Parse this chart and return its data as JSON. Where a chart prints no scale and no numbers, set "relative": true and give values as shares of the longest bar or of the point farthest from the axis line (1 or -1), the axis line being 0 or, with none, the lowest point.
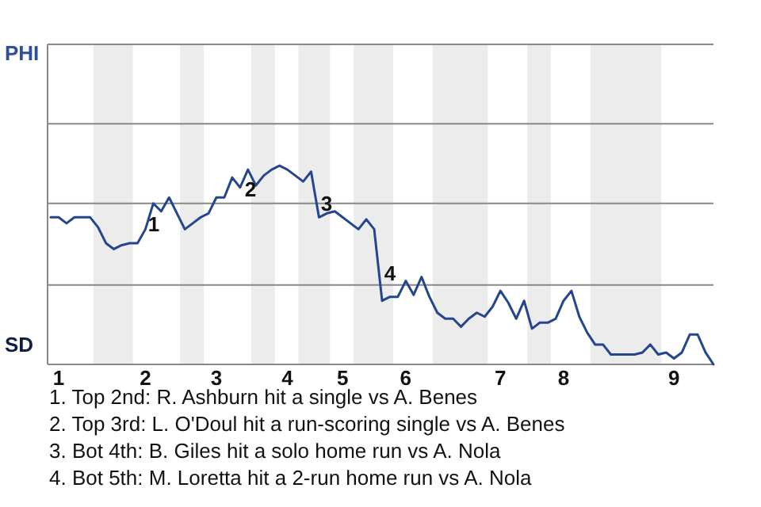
{
  "chart_data": {
    "type": "line",
    "relative": true,
    "categories": [
      null,
      "1",
      null,
      null,
      null,
      null,
      null,
      null,
      null,
      null,
      null,
      null,
      "2",
      null,
      null,
      null,
      null,
      null,
      null,
      null,
      null,
      "3",
      null,
      null,
      null,
      null,
      null,
      null,
      null,
      null,
      "4",
      null,
      null,
      null,
      null,
      null,
      null,
      "5",
      null,
      null,
      null,
      null,
      null,
      null,
      null,
      "6",
      null,
      null,
      null,
      null,
      null,
      null,
      null,
      null,
      null,
      null,
      null,
      "7",
      null,
      null,
      null,
      null,
      null,
      null,
      null,
      "8",
      null,
      null,
      null,
      null,
      null,
      null,
      null,
      null,
      null,
      null,
      null,
      null,
      null,
      "9",
      null,
      null,
      null,
      null,
      null
    ],
    "series": [
      {
        "color": "#24468f",
        "values": [
          0.74,
          0.74,
          0.71,
          0.74,
          0.74,
          0.74,
          0.69,
          0.61,
          0.58,
          0.6,
          0.61,
          0.61,
          0.68,
          0.81,
          0.77,
          0.84,
          0.76,
          0.68,
          0.71,
          0.74,
          0.76,
          0.84,
          0.84,
          0.94,
          0.89,
          0.98,
          0.9,
          0.95,
          0.98,
          1,
          0.98,
          0.95,
          0.92,
          0.97,
          0.74,
          0.76,
          0.77,
          0.74,
          0.71,
          0.68,
          0.73,
          0.68,
          0.32,
          0.34,
          0.34,
          0.42,
          0.35,
          0.44,
          0.34,
          0.26,
          0.23,
          0.23,
          0.19,
          0.23,
          0.26,
          0.24,
          0.29,
          0.37,
          0.31,
          0.23,
          0.32,
          0.18,
          0.21,
          0.21,
          0.23,
          0.32,
          0.37,
          0.24,
          0.16,
          0.1,
          0.1,
          0.05,
          0.05,
          0.05,
          0.05,
          0.06,
          0.1,
          0.05,
          0.06,
          0.03,
          0.06,
          0.15,
          0.15,
          0.06,
          0
        ]
      }
    ],
    "ref_lines": [
      {
        "axis": "y",
        "value": 0.4,
        "color": "#888888"
      },
      {
        "axis": "y",
        "value": 0.81,
        "color": "#888888"
      },
      {
        "axis": "y",
        "value": 1.21,
        "color": "#888888"
      },
      {
        "axis": "y",
        "value": 1.61,
        "color": "#888888"
      }
    ],
    "annotations": [
      "PHI",
      "SD",
      "1",
      "2",
      "3",
      "4",
      "1. Top 2nd: R. Ashburn hit a single vs A. Benes",
      "2. Top 3rd: L. O'Doul hit a run-scoring single vs A. Benes",
      "3. Bot 4th: B. Giles hit a solo home run vs A. Nola",
      "4. Bot 5th: M. Loretta hit a 2-run home run vs A. Nola"
    ]
  }
}
